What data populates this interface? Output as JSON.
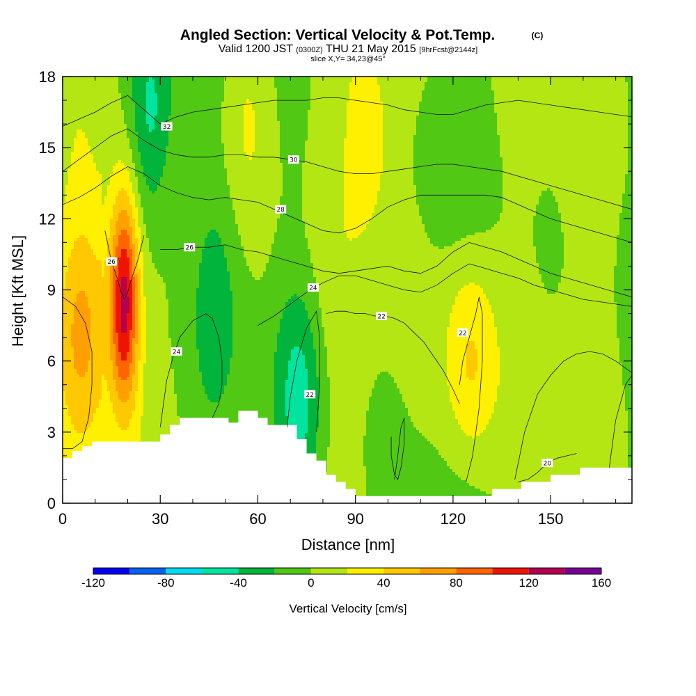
{
  "title": {
    "main": "Angled Section: Vertical Velocity & Pot.Temp.",
    "main_suffix": "(C)",
    "valid_prefix": "Valid 1200 JST",
    "valid_utc": "(0300Z)",
    "valid_date": "THU 21 May 2015",
    "forecast": "[9hrFcst@2144z]",
    "slice": "slice X,Y= 34,23@45°"
  },
  "chart_data": {
    "type": "heatmap",
    "xlabel": "Distance [nm]",
    "ylabel": "Height [Kft MSL]",
    "xlim": [
      0,
      175
    ],
    "ylim": [
      0,
      18
    ],
    "x_ticks": [
      0,
      30,
      60,
      90,
      120,
      150
    ],
    "y_ticks": [
      0,
      3,
      6,
      9,
      12,
      15,
      18
    ],
    "colorbar": {
      "label": "Vertical Velocity [cm/s]",
      "tick_values": [
        -120,
        -80,
        -40,
        0,
        40,
        80,
        120,
        160
      ],
      "levels": [
        -120,
        -100,
        -80,
        -60,
        -40,
        -20,
        0,
        20,
        40,
        60,
        80,
        100,
        120,
        140,
        160
      ],
      "colors": [
        "#0000f0",
        "#0064f0",
        "#00dcf0",
        "#00e4a0",
        "#00b43c",
        "#50c814",
        "#b4e614",
        "#fff000",
        "#ffc800",
        "#ffa000",
        "#ff6400",
        "#f01400",
        "#b40050",
        "#780096"
      ]
    },
    "velocity_features": [
      {
        "sign": "up",
        "x": 19,
        "z": 8.5,
        "peak_cm_s": 125
      },
      {
        "sign": "up",
        "x": 6,
        "z": 7.5,
        "peak_cm_s": 55
      },
      {
        "sign": "up",
        "x": 125,
        "z": 6.0,
        "peak_cm_s": 50
      },
      {
        "sign": "up",
        "x": 95,
        "z": 15.5,
        "peak_cm_s": 30
      },
      {
        "sign": "up",
        "x": 57,
        "z": 16.5,
        "peak_cm_s": 25
      },
      {
        "sign": "down",
        "x": 27,
        "z": 16.5,
        "peak_cm_s": -55
      },
      {
        "sign": "down",
        "x": 73,
        "z": 4.5,
        "peak_cm_s": -45
      },
      {
        "sign": "down",
        "x": 48,
        "z": 9.0,
        "peak_cm_s": -20
      }
    ],
    "terrain": {
      "x": [
        0,
        3,
        6,
        9,
        12,
        15,
        18,
        21,
        24,
        27,
        30,
        33,
        36,
        39,
        42,
        45,
        48,
        51,
        54,
        57,
        60,
        63,
        66,
        69,
        72,
        75,
        78,
        81,
        84,
        87,
        90,
        93,
        96,
        99,
        102,
        105,
        108,
        111,
        114,
        117,
        120,
        123,
        126,
        129,
        132,
        135,
        138,
        141,
        144,
        147,
        150,
        153,
        156,
        159,
        162,
        165,
        168,
        171,
        175
      ],
      "height": [
        1.9,
        2.2,
        2.4,
        2.6,
        2.6,
        2.6,
        2.6,
        2.6,
        2.6,
        2.6,
        2.9,
        3.3,
        3.6,
        3.6,
        3.6,
        3.6,
        3.6,
        3.4,
        3.9,
        3.9,
        3.6,
        3.3,
        3.3,
        3.3,
        2.7,
        2.1,
        1.8,
        1.2,
        0.9,
        0.6,
        0.3,
        0.3,
        0.3,
        0.3,
        0.3,
        0.3,
        0.3,
        0.3,
        0.3,
        0.3,
        0.3,
        0.3,
        0.3,
        0.3,
        0.6,
        0.6,
        0.6,
        0.9,
        0.9,
        0.9,
        1.2,
        1.2,
        1.2,
        1.5,
        1.5,
        1.5,
        1.5,
        1.5,
        1.5
      ]
    },
    "theta_contours": [
      {
        "value": 20,
        "label": "20",
        "label_x": 149,
        "label_z": 1.7,
        "x": [
          140,
          143,
          146,
          149,
          152,
          155,
          158
        ],
        "z": [
          0.9,
          1.0,
          1.3,
          1.7,
          1.9,
          2.0,
          2.1
        ]
      },
      {
        "value": 22,
        "label": "22",
        "label_x": 98,
        "label_z": 7.9,
        "x": [
          81,
          84,
          87,
          90,
          93,
          96,
          99,
          102,
          105,
          108,
          111,
          114,
          117,
          120,
          122
        ],
        "z": [
          8.0,
          8.1,
          8.1,
          8.0,
          8.0,
          7.9,
          7.9,
          7.8,
          7.6,
          7.2,
          6.8,
          6.2,
          5.6,
          4.8,
          4.2
        ]
      },
      {
        "value": 24,
        "label": "24",
        "label_x": 77,
        "label_z": 9.1,
        "x": [
          60,
          65,
          70,
          75,
          80,
          85,
          90,
          95,
          100,
          105,
          110,
          115,
          120,
          125,
          130,
          135,
          140,
          145,
          150,
          155,
          160,
          165,
          170,
          175
        ],
        "z": [
          7.5,
          7.9,
          8.4,
          8.9,
          9.3,
          9.6,
          9.6,
          9.4,
          9.2,
          9.0,
          8.9,
          9.2,
          9.7,
          10.1,
          9.9,
          9.7,
          9.5,
          9.2,
          9.0,
          8.8,
          8.6,
          8.5,
          8.4,
          8.3
        ]
      },
      {
        "value": 26,
        "label": "26",
        "label_x": 39,
        "label_z": 10.8,
        "x": [
          30,
          35,
          40,
          45,
          50,
          55,
          60,
          65,
          70,
          75,
          80,
          85,
          90,
          95,
          100,
          105,
          110,
          115,
          120,
          125,
          130,
          135,
          140,
          145,
          150,
          155,
          160,
          165,
          170,
          175
        ],
        "z": [
          10.7,
          10.7,
          10.8,
          10.8,
          10.9,
          10.7,
          10.6,
          10.4,
          10.2,
          10.0,
          9.8,
          9.7,
          9.8,
          9.9,
          10.0,
          9.8,
          9.7,
          10.0,
          10.6,
          11.0,
          10.8,
          10.6,
          10.3,
          10.0,
          9.7,
          9.5,
          9.3,
          9.1,
          8.9,
          8.7
        ]
      },
      {
        "value": 28,
        "label": "28",
        "label_x": 67,
        "label_z": 12.4,
        "x": [
          0,
          5,
          10,
          15,
          20,
          25,
          30,
          35,
          40,
          45,
          50,
          55,
          60,
          65,
          70,
          75,
          80,
          85,
          90,
          95,
          100,
          105,
          110,
          115,
          120,
          125,
          130,
          135,
          140,
          145,
          150,
          155,
          160,
          165,
          170,
          175
        ],
        "z": [
          12.6,
          12.9,
          13.3,
          13.8,
          14.2,
          13.9,
          13.4,
          13.1,
          12.9,
          12.8,
          12.9,
          12.8,
          12.7,
          12.4,
          12.1,
          11.8,
          11.5,
          11.4,
          11.6,
          12.0,
          12.5,
          12.8,
          13.0,
          13.0,
          13.0,
          13.0,
          13.0,
          12.9,
          12.6,
          12.3,
          12.0,
          11.8,
          11.6,
          11.4,
          11.2,
          11.0
        ]
      },
      {
        "value": 30,
        "label": "30",
        "label_x": 71,
        "label_z": 14.5,
        "x": [
          0,
          5,
          10,
          15,
          20,
          25,
          30,
          35,
          40,
          45,
          50,
          55,
          60,
          65,
          70,
          75,
          80,
          85,
          90,
          95,
          100,
          105,
          110,
          115,
          120,
          125,
          130,
          135,
          140,
          145,
          150,
          155,
          160,
          165,
          170,
          175
        ],
        "z": [
          14.0,
          14.5,
          15.0,
          15.5,
          15.8,
          15.3,
          14.9,
          14.7,
          14.6,
          14.6,
          14.7,
          14.7,
          14.6,
          14.6,
          14.5,
          14.4,
          14.2,
          14.0,
          13.9,
          13.9,
          14.0,
          14.1,
          14.2,
          14.3,
          14.3,
          14.2,
          14.1,
          14.0,
          13.8,
          13.6,
          13.4,
          13.2,
          13.0,
          12.8,
          12.6,
          12.4
        ]
      },
      {
        "value": 32,
        "label": "32",
        "label_x": 32,
        "label_z": 15.9,
        "x": [
          0,
          5,
          10,
          15,
          20,
          25,
          30,
          35,
          40,
          45,
          50,
          55,
          60,
          65,
          70,
          75,
          80,
          85,
          90,
          95,
          100,
          105,
          110,
          115,
          120,
          125,
          130,
          135,
          140,
          145,
          150,
          155,
          160,
          165,
          170,
          175
        ],
        "z": [
          15.9,
          16.2,
          16.5,
          16.9,
          17.2,
          16.6,
          16.0,
          16.3,
          16.5,
          16.6,
          16.7,
          16.8,
          16.9,
          17.0,
          17.0,
          17.0,
          17.1,
          17.1,
          17.0,
          16.9,
          16.8,
          16.6,
          16.5,
          16.4,
          16.4,
          16.6,
          16.8,
          16.9,
          17.0,
          16.9,
          16.8,
          16.7,
          16.6,
          16.5,
          16.4,
          16.3
        ]
      },
      {
        "value": 26,
        "label": "26",
        "label_x": 15,
        "label_z": 10.2,
        "x": [
          13,
          15,
          17,
          18,
          19,
          20,
          21,
          23,
          25
        ],
        "z": [
          11.5,
          10.2,
          9.4,
          8.9,
          8.6,
          8.9,
          9.4,
          10.2,
          11.3
        ]
      },
      {
        "value": 24,
        "label": "24",
        "label_x": 35,
        "label_z": 6.4,
        "x": [
          30,
          31,
          32,
          34,
          36,
          40,
          44,
          46,
          48,
          49,
          49,
          48,
          46
        ],
        "z": [
          3.2,
          4.2,
          5.2,
          6.2,
          7.0,
          7.7,
          8.0,
          7.8,
          7.0,
          6.0,
          5.0,
          4.2,
          3.6
        ]
      },
      {
        "value": 22,
        "label": "22",
        "label_x": 76,
        "label_z": 4.6,
        "x": [
          69,
          70,
          72,
          75,
          78,
          79,
          79,
          78
        ],
        "z": [
          3.2,
          4.5,
          6.0,
          7.4,
          8.1,
          7.0,
          5.0,
          3.0
        ]
      },
      {
        "value": 22,
        "label": "22",
        "label_x": 123,
        "label_z": 7.2,
        "x": [
          122,
          123,
          125,
          127,
          128,
          129,
          129,
          128,
          126,
          124
        ],
        "z": [
          5.0,
          6.0,
          7.0,
          8.0,
          8.7,
          8.0,
          6.0,
          4.0,
          2.0,
          0.9
        ]
      },
      {
        "value": 22,
        "label": "",
        "label_x": 0,
        "label_z": 0,
        "x": [
          0,
          4,
          7,
          9,
          9,
          8,
          6,
          3,
          0
        ],
        "z": [
          8.7,
          8.3,
          7.6,
          6.4,
          5.0,
          3.6,
          2.6,
          2.3,
          2.3
        ]
      },
      {
        "value": 22,
        "label": "",
        "label_x": 0,
        "label_z": 0,
        "x": [
          102,
          103,
          104,
          105,
          105,
          104,
          103,
          102,
          101,
          101
        ],
        "z": [
          1.0,
          2.0,
          3.2,
          3.6,
          2.5,
          1.5,
          1.0,
          1.2,
          2.0,
          2.8
        ]
      },
      {
        "value": 22,
        "label": "",
        "label_x": 0,
        "label_z": 0,
        "x": [
          139,
          142,
          146,
          150,
          154,
          158,
          162,
          166,
          170,
          175
        ],
        "z": [
          1.0,
          3.0,
          4.6,
          5.4,
          6.0,
          6.3,
          6.4,
          6.3,
          6.0,
          5.5
        ]
      },
      {
        "value": 22,
        "label": "",
        "label_x": 0,
        "label_z": 0,
        "x": [
          168,
          170,
          173,
          175
        ],
        "z": [
          1.5,
          3.5,
          5.0,
          5.4
        ]
      }
    ]
  }
}
